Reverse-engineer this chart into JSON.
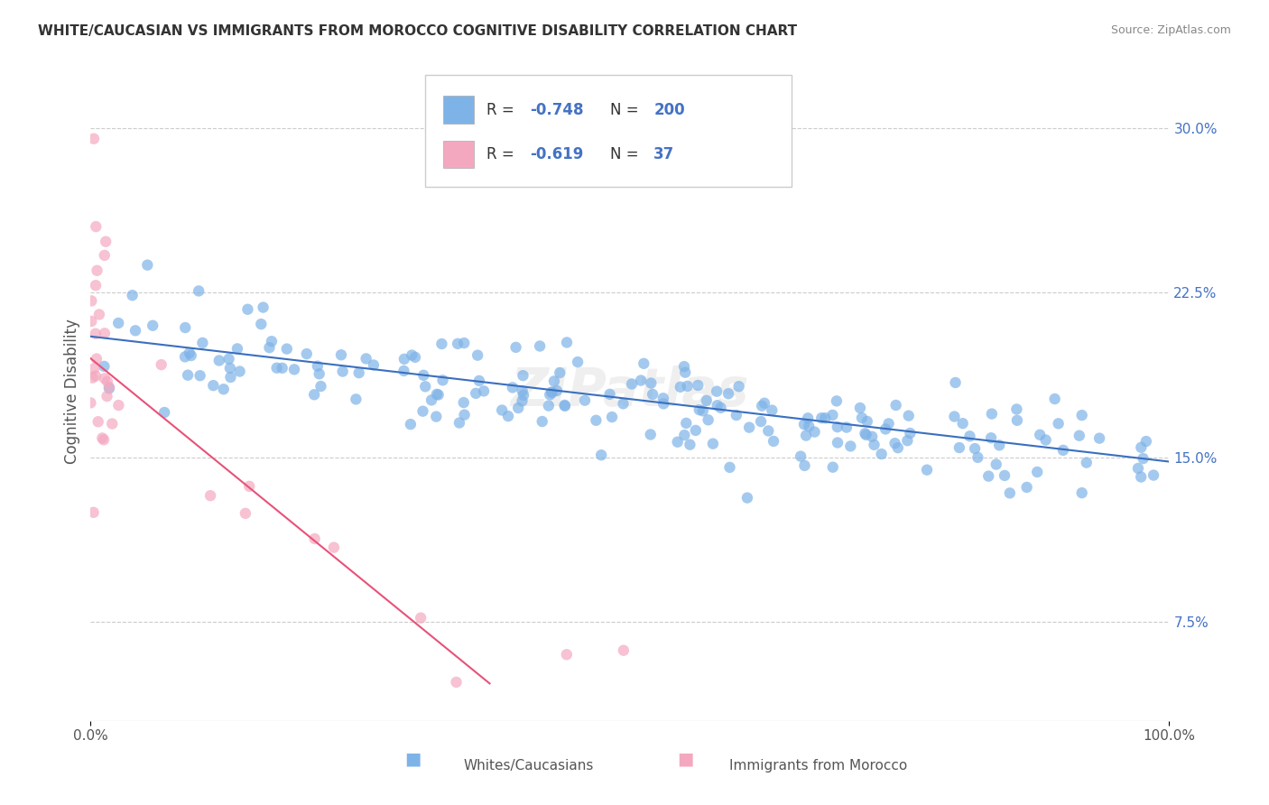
{
  "title": "WHITE/CAUCASIAN VS IMMIGRANTS FROM MOROCCO COGNITIVE DISABILITY CORRELATION CHART",
  "source": "Source: ZipAtlas.com",
  "ylabel": "Cognitive Disability",
  "right_yticks": [
    0.075,
    0.15,
    0.225,
    0.3
  ],
  "right_yticklabels": [
    "7.5%",
    "15.0%",
    "22.5%",
    "30.0%"
  ],
  "xlim": [
    0.0,
    1.0
  ],
  "ylim": [
    0.03,
    0.33
  ],
  "blue_R": -0.748,
  "blue_N": 200,
  "pink_R": -0.619,
  "pink_N": 37,
  "blue_color": "#7EB3E8",
  "pink_color": "#F4A8C0",
  "blue_line_color": "#3A6FBF",
  "pink_line_color": "#E8527A",
  "legend_label_blue": "Whites/Caucasians",
  "legend_label_pink": "Immigrants from Morocco",
  "watermark": "ZIPatlas",
  "grid_color": "#CCCCCC",
  "background_color": "#FFFFFF",
  "slope_blue": -0.057,
  "intercept_blue": 0.205,
  "slope_pink": -0.4,
  "intercept_pink": 0.195,
  "text_color_dark": "#333333",
  "text_color_blue": "#4472C4",
  "text_color_axis": "#555555"
}
